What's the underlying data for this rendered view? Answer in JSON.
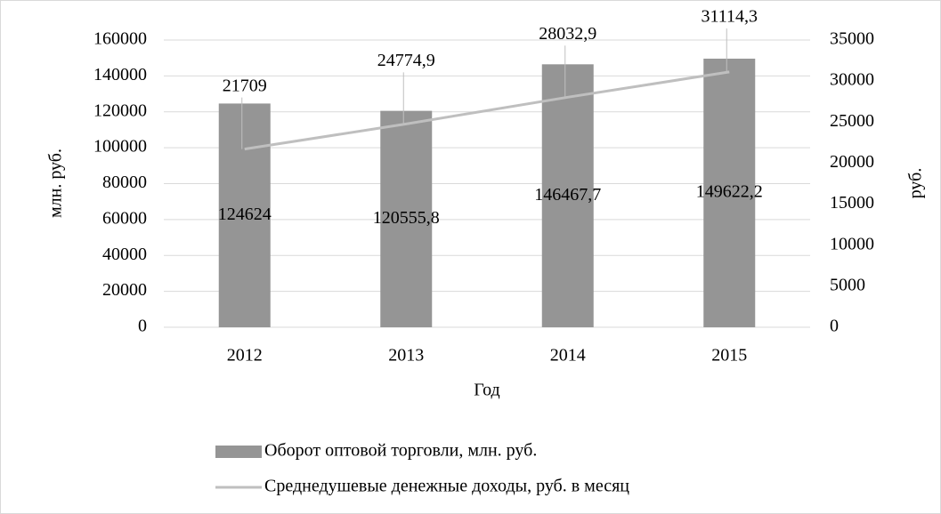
{
  "chart_data": {
    "type": "combo",
    "x_label": "Год",
    "y_label": "млн. руб.",
    "y2_label": "руб.",
    "categories": [
      "2012",
      "2013",
      "2014",
      "2015"
    ],
    "series": [
      {
        "name": "Оборот оптовой торговли, млн. руб.",
        "type": "bar",
        "color": "#959595",
        "values": [
          124624,
          120555.8,
          146467.7,
          149622.2
        ],
        "value_labels": [
          "124624",
          "120555,8",
          "146467,7",
          "149622,2"
        ]
      },
      {
        "name": "Среднедушевые денежные доходы, руб. в месяц",
        "type": "line",
        "axis": "y2",
        "color": "#bfbfbf",
        "values": [
          21709,
          24774.9,
          28032.9,
          31114.3
        ],
        "value_labels": [
          "21709",
          "24774,9",
          "28032,9",
          "31114,3"
        ]
      }
    ],
    "ylim": [
      0,
      160000
    ],
    "yticks": [
      0,
      20000,
      40000,
      60000,
      80000,
      100000,
      120000,
      140000,
      160000
    ],
    "y2lim": [
      0,
      35000
    ],
    "y2ticks": [
      0,
      5000,
      10000,
      15000,
      20000,
      25000,
      30000,
      35000
    ],
    "grid": true,
    "legend": "bottom"
  }
}
